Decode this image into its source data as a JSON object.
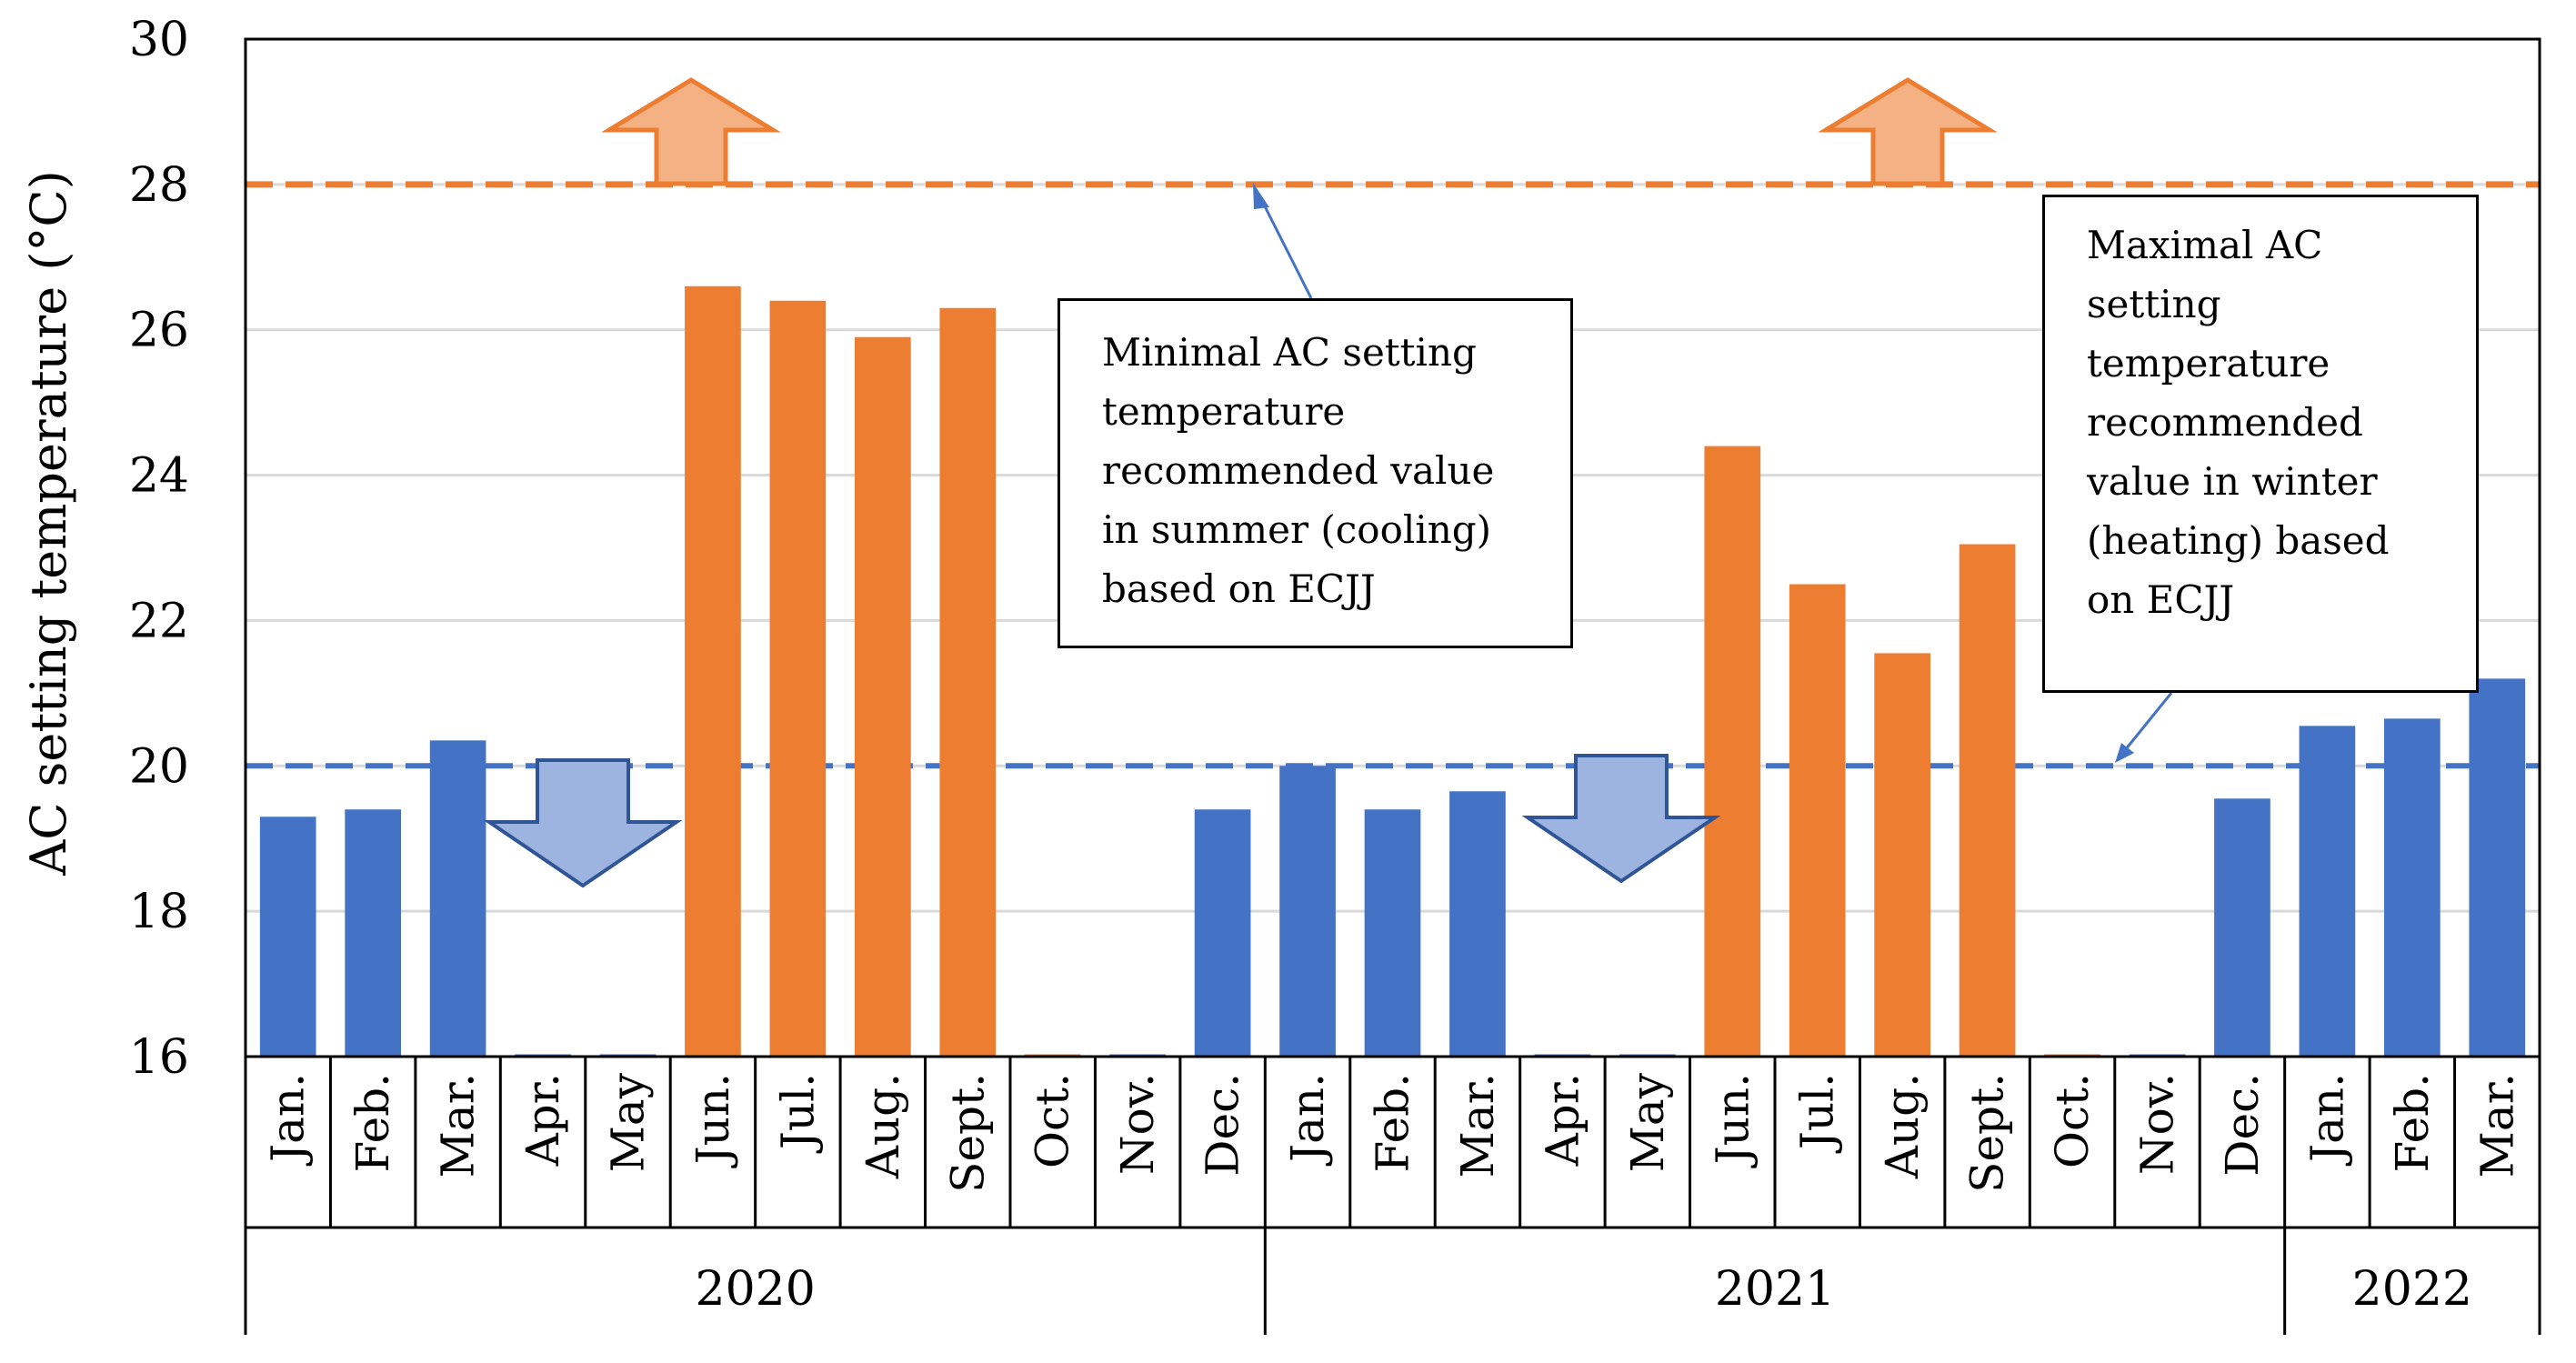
{
  "chart_data": {
    "type": "bar",
    "title": "",
    "xlabel": "",
    "ylabel": "AC setting temperature (°C)",
    "ylim": [
      16,
      30
    ],
    "yticks": [
      16,
      18,
      20,
      22,
      24,
      26,
      28,
      30
    ],
    "grid": true,
    "categories": [
      "Jan.",
      "Feb.",
      "Mar.",
      "Apr.",
      "May",
      "Jun.",
      "Jul.",
      "Aug.",
      "Sept.",
      "Oct.",
      "Nov.",
      "Dec.",
      "Jan.",
      "Feb.",
      "Mar.",
      "Apr.",
      "May",
      "Jun.",
      "Jul.",
      "Aug.",
      "Sept.",
      "Oct.",
      "Nov.",
      "Dec.",
      "Jan.",
      "Feb.",
      "Mar."
    ],
    "values": [
      19.3,
      19.4,
      20.35,
      null,
      null,
      26.6,
      26.4,
      25.9,
      26.3,
      null,
      null,
      19.4,
      20.0,
      19.4,
      19.65,
      null,
      null,
      24.4,
      22.5,
      21.55,
      23.05,
      null,
      null,
      19.55,
      20.55,
      20.65,
      21.2
    ],
    "season": [
      "heating",
      "heating",
      "heating",
      "heating",
      "heating",
      "cooling",
      "cooling",
      "cooling",
      "cooling",
      "cooling",
      "heating",
      "heating",
      "heating",
      "heating",
      "heating",
      "heating",
      "heating",
      "cooling",
      "cooling",
      "cooling",
      "cooling",
      "cooling",
      "heating",
      "heating",
      "heating",
      "heating",
      "heating"
    ],
    "groups": [
      {
        "label": "2020",
        "count": 12
      },
      {
        "label": "2021",
        "count": 12
      },
      {
        "label": "2022",
        "count": 3
      }
    ],
    "reference_lines": [
      {
        "name": "cooling-minimum",
        "value": 28,
        "color": "#ED7D31",
        "style": "dashed"
      },
      {
        "name": "heating-maximum",
        "value": 20,
        "color": "#4472C4",
        "style": "dashed"
      }
    ],
    "colors": {
      "heating": "#4472C4",
      "cooling": "#ED7D31",
      "up_arrow_fill": "#F4B183",
      "down_arrow_fill": "#9DB4E0",
      "down_arrow_stroke": "#2F5597",
      "grid": "#D9D9D9"
    },
    "annotations": [
      {
        "name": "annot-min",
        "lines": [
          "Minimal AC setting",
          "temperature",
          "recommended value",
          "in summer (cooling)",
          "based on ECJJ"
        ]
      },
      {
        "name": "annot-max",
        "lines": [
          "Maximal AC",
          "setting",
          "temperature",
          "recommended",
          "value in winter",
          "(heating) based",
          "on ECJJ"
        ]
      }
    ]
  }
}
